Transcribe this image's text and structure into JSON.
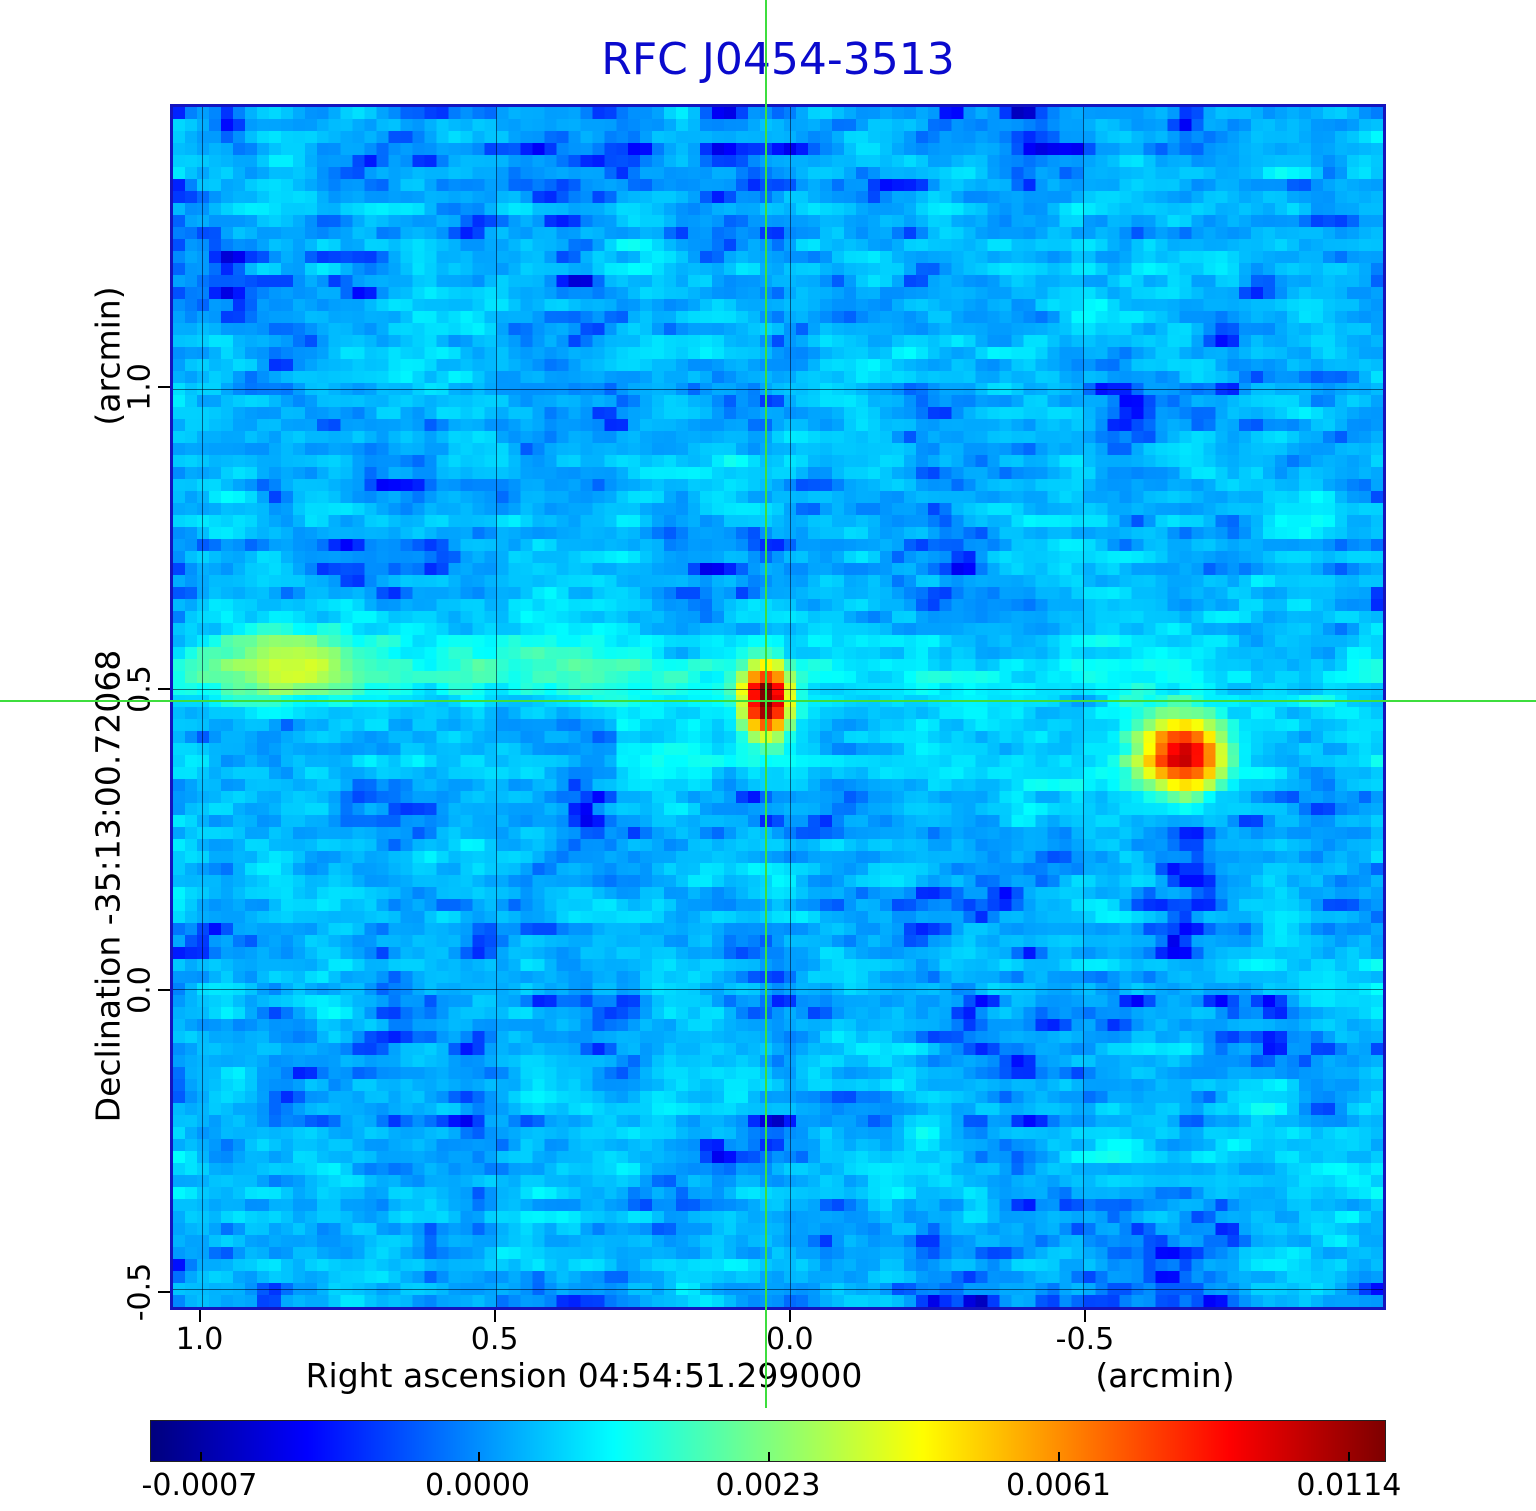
{
  "title": "RFC J0454-3513",
  "axes": {
    "x_label": "Right ascension  04:54:51.299000",
    "x_unit": "(arcmin)",
    "y_label": "Declination  -35:13:00.72068",
    "y_unit": "(arcmin)",
    "x_ticks": [
      {
        "label": "1.0",
        "value": 1.0
      },
      {
        "label": "0.5",
        "value": 0.5
      },
      {
        "label": "0.0",
        "value": 0.0
      },
      {
        "label": "-0.5",
        "value": -0.5
      }
    ],
    "y_ticks": [
      {
        "label": "1.0",
        "value": 1.0
      },
      {
        "label": "0.5",
        "value": 0.5
      },
      {
        "label": "0.0",
        "value": 0.0
      },
      {
        "label": "-0.5",
        "value": -0.5
      }
    ]
  },
  "colorbar": {
    "ticks": [
      {
        "label": "-0.0007",
        "value": -0.0007,
        "position": 0.04
      },
      {
        "label": "0.0000",
        "value": 0.0,
        "position": 0.265
      },
      {
        "label": "0.0023",
        "value": 0.0023,
        "position": 0.5
      },
      {
        "label": "0.0061",
        "value": 0.0061,
        "position": 0.735
      },
      {
        "label": "0.0114",
        "value": 0.0114,
        "position": 0.97
      }
    ]
  },
  "colors": {
    "title": "#0a0acd",
    "frame": "#1414be",
    "crosshair": "#3dde3d",
    "grid": "rgba(0,0,25,0.55)",
    "text": "#000000"
  },
  "chart_data": {
    "type": "heatmap",
    "title": "RFC J0454-3513",
    "xlabel": "Right ascension 04:54:51.299000 (arcmin)",
    "ylabel": "Declination -35:13:00.72068 (arcmin)",
    "x_range_arcmin": [
      1.05,
      -1.01
    ],
    "y_range_arcmin": [
      1.47,
      -0.53
    ],
    "grid": true,
    "legend": "colorbar-bottom",
    "colormap": "jet",
    "intensity_scale": {
      "tick_values": [
        -0.0007,
        0.0,
        0.0023,
        0.0061,
        0.0114
      ],
      "tick_positions": [
        0.04,
        0.265,
        0.5,
        0.735,
        0.97
      ]
    },
    "crosshair": {
      "ra_offset": 0.04,
      "dec_offset": 0.48
    },
    "sources": [
      {
        "name": "central-compact-source",
        "ra_offset": 0.04,
        "dec_offset": 0.48,
        "peak": 0.0125,
        "sigma_ra": 0.035,
        "sigma_dec": 0.05
      },
      {
        "name": "secondary-source-west",
        "ra_offset": -0.67,
        "dec_offset": 0.39,
        "peak": 0.0095,
        "sigma_ra": 0.06,
        "sigma_dec": 0.055
      },
      {
        "name": "faint-knot-east",
        "ra_offset": 0.84,
        "dec_offset": 0.54,
        "peak": 0.0022,
        "sigma_ra": 0.09,
        "sigma_dec": 0.06
      }
    ],
    "bands": [
      {
        "name": "jet-streak-east",
        "dec_center": 0.53,
        "sigma": 0.055,
        "amplitude": 0.001,
        "ra_from": 1.05,
        "ra_to": 0.0
      },
      {
        "name": "jet-streak-west",
        "dec_center": 0.52,
        "sigma": 0.06,
        "amplitude": 0.0005,
        "ra_from": 0.0,
        "ra_to": -1.01
      },
      {
        "name": "lower-warm-band",
        "dec_center": 0.4,
        "sigma": 0.07,
        "amplitude": 0.0005,
        "ra_from": 0.3,
        "ra_to": -1.01
      }
    ],
    "background": {
      "mean": 0.0003,
      "rms": 0.00035
    }
  }
}
